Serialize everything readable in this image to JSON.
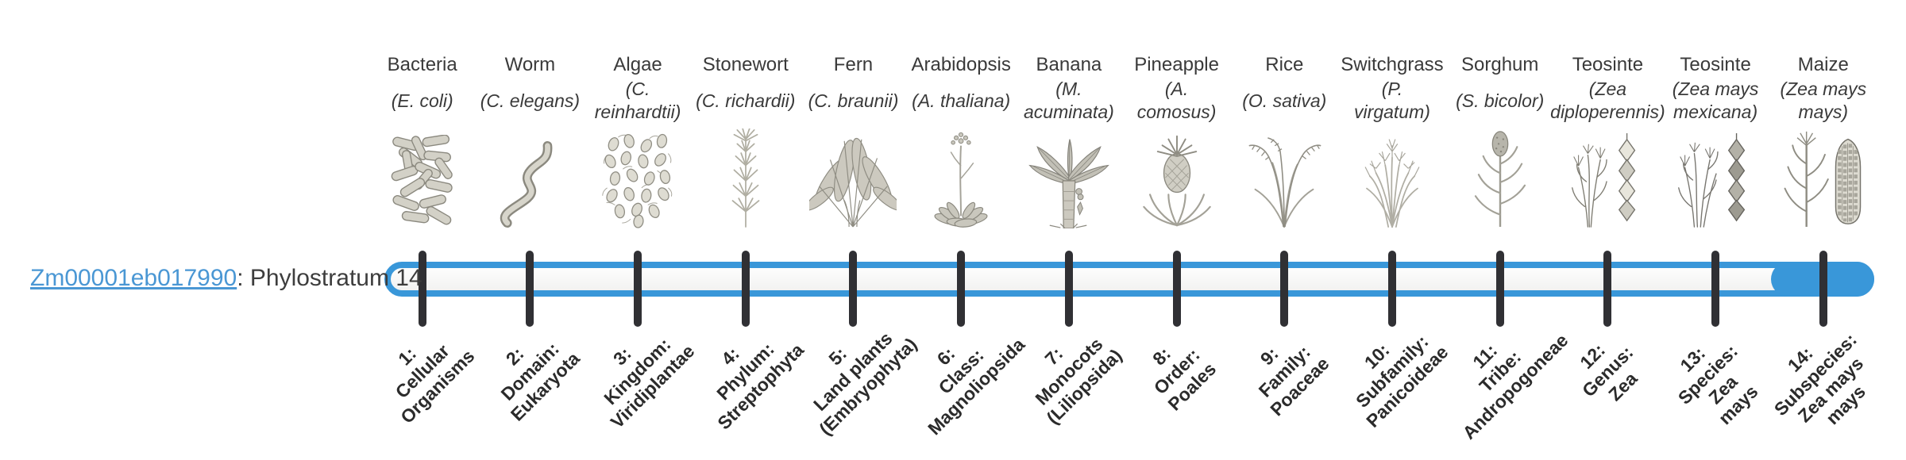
{
  "gene": {
    "id": "Zm00001eb017990",
    "suffix": ": Phylostratum 14"
  },
  "colors": {
    "bar_blue": "#3997D9",
    "link_blue": "#4A97D4",
    "tick": "#303034",
    "text": "#3A3A3A",
    "stratum_text": "#2B2B2B"
  },
  "highlighted_stratum": 14,
  "organisms": [
    {
      "name": "Bacteria",
      "scientific_name": "(E. coli)",
      "icon": "bacteria-icon"
    },
    {
      "name": "Worm",
      "scientific_name": "(C. elegans)",
      "icon": "worm-icon"
    },
    {
      "name": "Algae",
      "scientific_name": "(C.\nreinhardtii)",
      "icon": "algae-icon"
    },
    {
      "name": "Stonewort",
      "scientific_name": "(C. richardii)",
      "icon": "stonewort-icon"
    },
    {
      "name": "Fern",
      "scientific_name": "(C. braunii)",
      "icon": "fern-icon"
    },
    {
      "name": "Arabidopsis",
      "scientific_name": "(A. thaliana)",
      "icon": "arabidopsis-icon"
    },
    {
      "name": "Banana",
      "scientific_name": "(M.\nacuminata)",
      "icon": "banana-icon"
    },
    {
      "name": "Pineapple",
      "scientific_name": "(A.\ncomosus)",
      "icon": "pineapple-icon"
    },
    {
      "name": "Rice",
      "scientific_name": "(O. sativa)",
      "icon": "rice-icon"
    },
    {
      "name": "Switchgrass",
      "scientific_name": "(P.\nvirgatum)",
      "icon": "switchgrass-icon"
    },
    {
      "name": "Sorghum",
      "scientific_name": "(S. bicolor)",
      "icon": "sorghum-icon"
    },
    {
      "name": "Teosinte",
      "scientific_name": "(Zea\ndiploperennis)",
      "icon": "teosinte-diploperennis-icon"
    },
    {
      "name": "Teosinte",
      "scientific_name": "(Zea mays\nmexicana)",
      "icon": "teosinte-mexicana-icon"
    },
    {
      "name": "Maize",
      "scientific_name": "(Zea mays\nmays)",
      "icon": "maize-icon"
    }
  ],
  "strata": [
    {
      "number": 1,
      "label": "1:\nCellular\nOrganisms"
    },
    {
      "number": 2,
      "label": "2:\nDomain:\nEukaryota"
    },
    {
      "number": 3,
      "label": "3:\nKingdom:\nViridiplantae"
    },
    {
      "number": 4,
      "label": "4:\nPhylum:\nStreptophyta"
    },
    {
      "number": 5,
      "label": "5:\nLand plants\n(Embryophyta)"
    },
    {
      "number": 6,
      "label": "6:\nClass:\nMagnoliopsida"
    },
    {
      "number": 7,
      "label": "7:\nMonocots\n(Liliopsida)"
    },
    {
      "number": 8,
      "label": "8:\nOrder:\nPoales"
    },
    {
      "number": 9,
      "label": "9:\nFamily:\nPoaceae"
    },
    {
      "number": 10,
      "label": "10:\nSubfamily:\nPanicoideae"
    },
    {
      "number": 11,
      "label": "11:\nTribe:\nAndropogoneae"
    },
    {
      "number": 12,
      "label": "12:\nGenus:\nZea"
    },
    {
      "number": 13,
      "label": "13:\nSpecies:\nZea\nmays"
    },
    {
      "number": 14,
      "label": "14:\nSubspecies:\nZea mays\nmays"
    }
  ]
}
